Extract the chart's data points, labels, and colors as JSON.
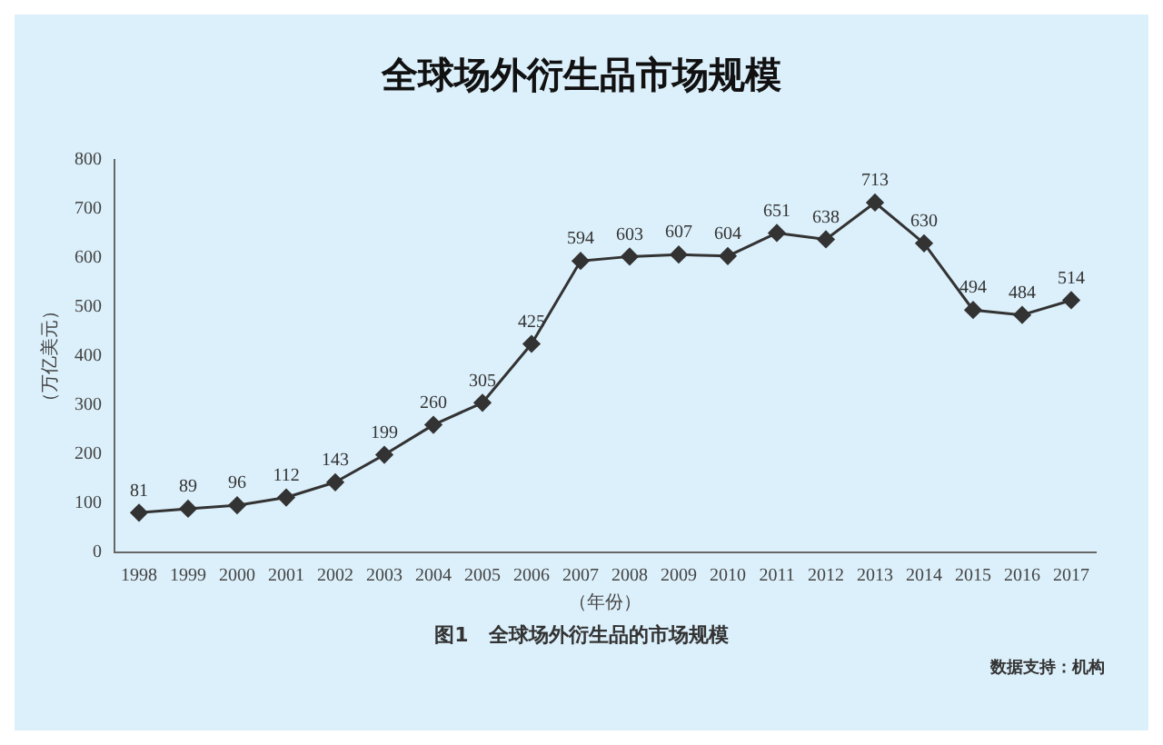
{
  "chart_data": {
    "type": "line",
    "title": "全球场外衍生品市场规模",
    "xlabel": "（年份）",
    "ylabel": "（万亿美元）",
    "categories": [
      "1998",
      "1999",
      "2000",
      "2001",
      "2002",
      "2003",
      "2004",
      "2005",
      "2006",
      "2007",
      "2008",
      "2009",
      "2010",
      "2011",
      "2012",
      "2013",
      "2014",
      "2015",
      "2016",
      "2017"
    ],
    "series": [
      {
        "color": "#333333",
        "values": [
          81,
          89,
          96,
          112,
          143,
          199,
          260,
          305,
          425,
          594,
          603,
          607,
          604,
          651,
          638,
          713,
          630,
          494,
          484,
          514
        ]
      }
    ],
    "ylim": [
      0,
      800
    ],
    "yticks": [
      0,
      100,
      200,
      300,
      400,
      500,
      600,
      700,
      800
    ],
    "grid": false,
    "legend": false,
    "marker": "diamond",
    "line_style": "solid",
    "data_labels": true,
    "annotations": [
      "图1　全球场外衍生品的市场规模",
      "数据支持：机构"
    ]
  }
}
